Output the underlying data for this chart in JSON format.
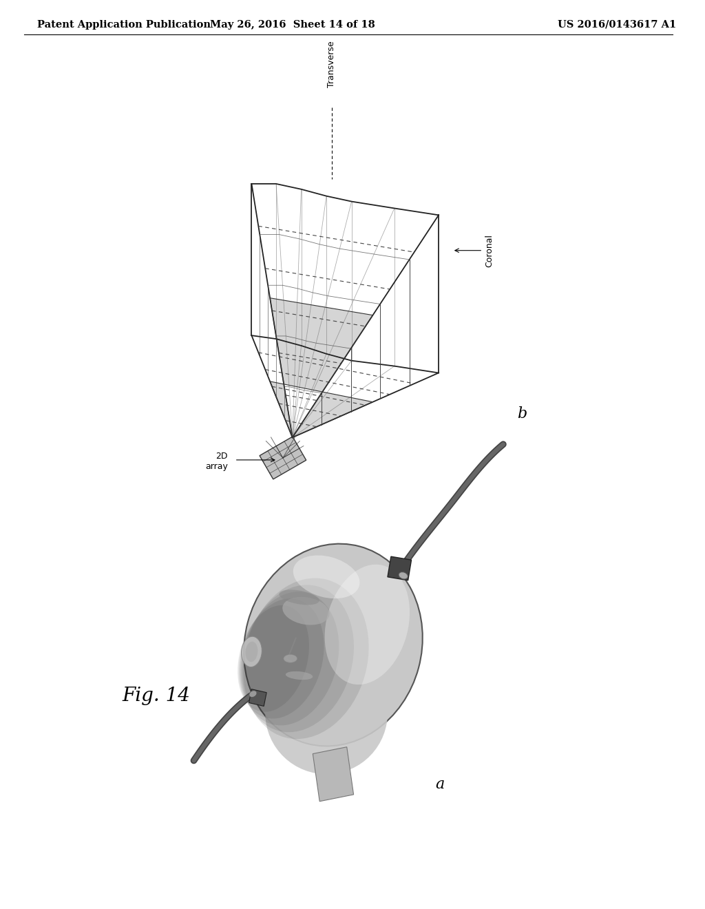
{
  "background_color": "#ffffff",
  "header_left": "Patent Application Publication",
  "header_center": "May 26, 2016  Sheet 14 of 18",
  "header_right": "US 2016/0143617 A1",
  "header_fontsize": 10.5,
  "fig_label": "Fig. 14",
  "fig_label_fontsize": 20,
  "label_a": "a",
  "label_b": "b",
  "label_fontsize": 16,
  "transverse_label": "Transverse",
  "coronal_label": "Coronal",
  "array_label": "2D\narray"
}
